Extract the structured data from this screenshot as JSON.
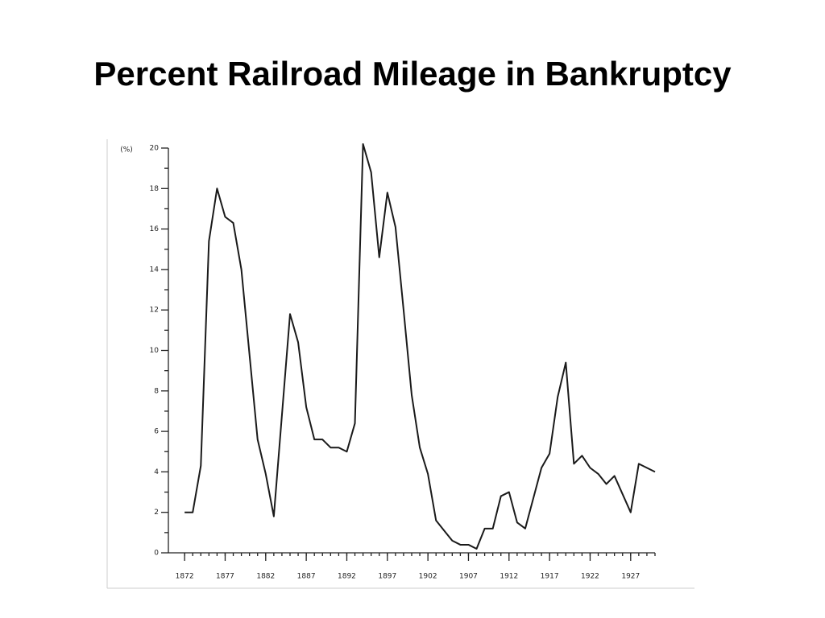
{
  "chart_data": {
    "type": "line",
    "title": "Percent Railroad Mileage in Bankruptcy",
    "y_label": "(%)",
    "x": [
      1872,
      1873,
      1874,
      1875,
      1876,
      1877,
      1878,
      1879,
      1880,
      1881,
      1882,
      1883,
      1884,
      1885,
      1886,
      1887,
      1888,
      1889,
      1890,
      1891,
      1892,
      1893,
      1894,
      1895,
      1896,
      1897,
      1898,
      1899,
      1900,
      1901,
      1902,
      1903,
      1904,
      1905,
      1906,
      1907,
      1908,
      1909,
      1910,
      1911,
      1912,
      1913,
      1914,
      1915,
      1916,
      1917,
      1918,
      1919,
      1920,
      1921,
      1922,
      1923,
      1924,
      1925,
      1926,
      1927,
      1928,
      1929,
      1930
    ],
    "series": [
      {
        "color": "#1a1a1a",
        "values": [
          2.0,
          2.0,
          4.3,
          15.4,
          18.0,
          16.6,
          16.3,
          14.0,
          9.8,
          5.6,
          3.9,
          1.8,
          6.8,
          11.8,
          10.4,
          7.2,
          5.6,
          5.6,
          5.2,
          5.2,
          5.0,
          6.4,
          20.2,
          18.8,
          14.6,
          17.8,
          16.1,
          12.0,
          7.8,
          5.2,
          3.9,
          1.6,
          1.1,
          0.6,
          0.4,
          0.4,
          0.2,
          1.2,
          1.2,
          2.8,
          3.0,
          1.5,
          1.2,
          2.7,
          4.2,
          4.9,
          7.7,
          9.4,
          4.4,
          4.8,
          4.2,
          3.9,
          3.4,
          3.8,
          2.9,
          2.0,
          4.4,
          4.2,
          4.0
        ]
      }
    ],
    "xlim": [
      1870,
      1930
    ],
    "xticks": [
      1872,
      1877,
      1882,
      1887,
      1892,
      1897,
      1902,
      1907,
      1912,
      1917,
      1922,
      1927
    ],
    "ylim": [
      0,
      20
    ],
    "yticks": [
      0,
      2,
      4,
      6,
      8,
      10,
      12,
      14,
      16,
      18,
      20
    ],
    "grid": false
  }
}
